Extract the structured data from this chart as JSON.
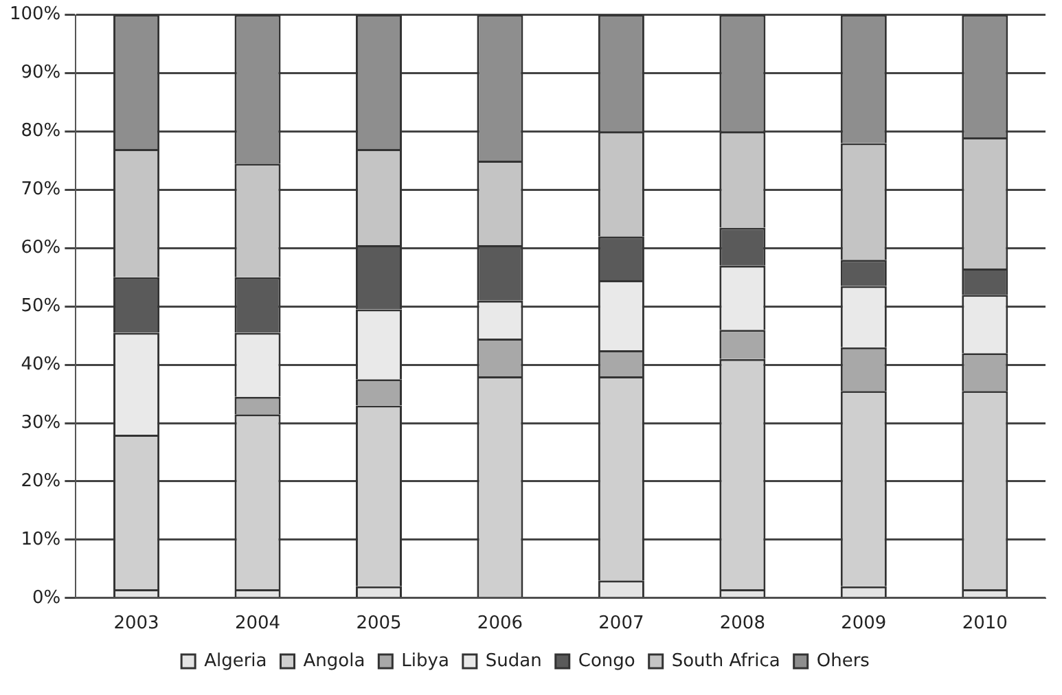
{
  "chart_data": {
    "type": "bar",
    "stacked": true,
    "categories": [
      "2003",
      "2004",
      "2005",
      "2006",
      "2007",
      "2008",
      "2009",
      "2010"
    ],
    "series": [
      {
        "name": "Algeria",
        "color": "#e4e4e4",
        "values": [
          1.5,
          1.5,
          2,
          null,
          3,
          1.5,
          2,
          1.5
        ]
      },
      {
        "name": "Angola",
        "color": "#cfcfcf",
        "values": [
          26.5,
          30,
          31,
          38,
          35,
          39.5,
          33.5,
          34
        ]
      },
      {
        "name": "Libya",
        "color": "#a8a8a8",
        "values": [
          0,
          3,
          4.5,
          6.5,
          4.5,
          5,
          7.5,
          6.5
        ]
      },
      {
        "name": "Sudan",
        "color": "#e9e9e9",
        "values": [
          17.5,
          11,
          12,
          6.5,
          12,
          11,
          10.5,
          10
        ]
      },
      {
        "name": "Congo",
        "color": "#5a5a5a",
        "values": [
          9.5,
          9.5,
          11,
          9.5,
          7.5,
          6.5,
          4.5,
          4.5
        ]
      },
      {
        "name": "South Africa",
        "color": "#c4c4c4",
        "values": [
          22,
          19.5,
          16.5,
          14.5,
          18,
          16.5,
          20,
          22.5
        ]
      },
      {
        "name": "Ohers",
        "color": "#8e8e8e",
        "values": [
          23,
          25.5,
          23,
          25,
          20,
          20,
          22,
          21
        ]
      }
    ],
    "ylim": [
      0,
      100
    ],
    "yticks": [
      {
        "value": 0,
        "label": "0%"
      },
      {
        "value": 10,
        "label": "10%"
      },
      {
        "value": 20,
        "label": "20%"
      },
      {
        "value": 30,
        "label": "30%"
      },
      {
        "value": 40,
        "label": "40%"
      },
      {
        "value": 50,
        "label": "50%"
      },
      {
        "value": 60,
        "label": "60%"
      },
      {
        "value": 70,
        "label": "70%"
      },
      {
        "value": 80,
        "label": "80%"
      },
      {
        "value": 90,
        "label": "90%"
      },
      {
        "value": 100,
        "label": "100%"
      }
    ],
    "grid": "y",
    "legend": "bottom"
  }
}
